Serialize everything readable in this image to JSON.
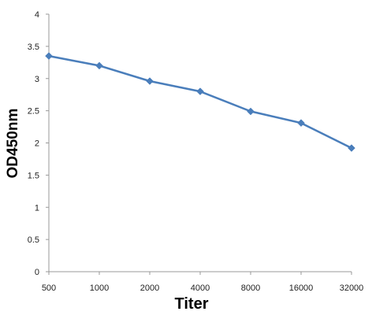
{
  "chart_data": {
    "type": "line",
    "title": "",
    "xlabel": "Titer",
    "ylabel": "OD450nm",
    "categories": [
      "500",
      "1000",
      "2000",
      "4000",
      "8000",
      "16000",
      "32000"
    ],
    "y_ticks": [
      "0",
      "0.5",
      "1",
      "1.5",
      "2",
      "2.5",
      "3",
      "3.5",
      "4"
    ],
    "ylim": [
      0,
      4
    ],
    "grid": false,
    "legend": "none",
    "series": [
      {
        "values": [
          3.35,
          3.2,
          2.96,
          2.8,
          2.49,
          2.31,
          1.92
        ],
        "color": "#4a7ebb",
        "marker": "diamond"
      }
    ]
  }
}
